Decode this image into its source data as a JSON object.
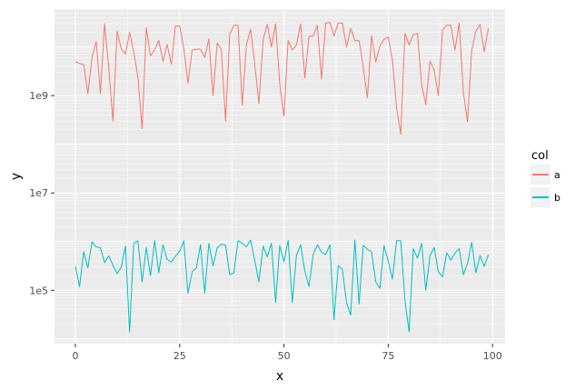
{
  "chart_data": {
    "type": "line",
    "title": "",
    "xlabel": "x",
    "ylabel": "y",
    "x_scale": "linear",
    "y_scale": "log10",
    "xlim": [
      -5,
      103
    ],
    "ylim": [
      8000,
      60000000000
    ],
    "x_ticks": [
      0,
      25,
      50,
      75,
      100
    ],
    "x_tick_labels": [
      "0",
      "25",
      "50",
      "75",
      "100"
    ],
    "y_ticks": [
      100000,
      10000000,
      1000000000
    ],
    "y_tick_labels": [
      "1e5",
      "1e7",
      "1e9"
    ],
    "grid": true,
    "legend": {
      "title": "col",
      "position": "right",
      "entries": [
        "a",
        "b"
      ]
    },
    "series": [
      {
        "name": "a",
        "color": "#f8766d",
        "x": [
          0,
          1,
          2,
          3,
          4,
          5,
          6,
          7,
          8,
          9,
          10,
          11,
          12,
          13,
          14,
          15,
          16,
          17,
          18,
          19,
          20,
          21,
          22,
          23,
          24,
          25,
          26,
          27,
          28,
          29,
          30,
          31,
          32,
          33,
          34,
          35,
          36,
          37,
          38,
          39,
          40,
          41,
          42,
          43,
          44,
          45,
          46,
          47,
          48,
          49,
          50,
          51,
          52,
          53,
          54,
          55,
          56,
          57,
          58,
          59,
          60,
          61,
          62,
          63,
          64,
          65,
          66,
          67,
          68,
          69,
          70,
          71,
          72,
          73,
          74,
          75,
          76,
          77,
          78,
          79,
          80,
          81,
          82,
          83,
          84,
          85,
          86,
          87,
          88,
          89,
          90,
          91,
          92,
          93,
          94,
          95,
          96,
          97,
          98,
          99
        ],
        "y": [
          5000000000,
          4600000000,
          4300000000,
          1100000000,
          6100000000,
          13000000000,
          1100000000,
          30000000000,
          3800000000,
          300000000,
          21000000000,
          9200000000,
          7100000000,
          20000000000,
          7800000000,
          2400000000,
          210000000,
          25000000000,
          6600000000,
          8700000000,
          13600000000,
          5000000000,
          11300000000,
          4400000000,
          27000000000,
          27000000000,
          9300000000,
          1800000000,
          8600000000,
          9000000000,
          9000000000,
          6100000000,
          14500000000,
          1000000000,
          12000000000,
          8800000000,
          300000000,
          18000000000,
          28000000000,
          28000000000,
          640000000,
          11000000000,
          23000000000,
          4500000000,
          680000000,
          14000000000,
          29000000000,
          10000000000,
          30000000000,
          1700000000,
          380000000,
          13500000000,
          8700000000,
          11000000000,
          30000000000,
          2300000000,
          16400000000,
          16900000000,
          28000000000,
          2200000000,
          31000000000,
          32000000000,
          17000000000,
          31000000000,
          31000000000,
          9900000000,
          24000000000,
          13500000000,
          13500000000,
          4000000000,
          900000000,
          17000000000,
          4900000000,
          10400000000,
          14400000000,
          16000000000,
          5400000000,
          550000000,
          160000000,
          19000000000,
          11000000000,
          18000000000,
          19000000000,
          1700000000,
          650000000,
          5100000000,
          3400000000,
          1000000000,
          22000000000,
          28000000000,
          28000000000,
          8600000000,
          31000000000,
          1200000000,
          290000000,
          8500000000,
          21000000000,
          29000000000,
          8000000000,
          24000000000
        ]
      },
      {
        "name": "b",
        "color": "#00bfc4",
        "x": [
          0,
          1,
          2,
          3,
          4,
          5,
          6,
          7,
          8,
          9,
          10,
          11,
          12,
          13,
          14,
          15,
          16,
          17,
          18,
          19,
          20,
          21,
          22,
          23,
          24,
          25,
          26,
          27,
          28,
          29,
          30,
          31,
          32,
          33,
          34,
          35,
          36,
          37,
          38,
          39,
          40,
          41,
          42,
          43,
          44,
          45,
          46,
          47,
          48,
          49,
          50,
          51,
          52,
          53,
          54,
          55,
          56,
          57,
          58,
          59,
          60,
          61,
          62,
          63,
          64,
          65,
          66,
          67,
          68,
          69,
          70,
          71,
          72,
          73,
          74,
          75,
          76,
          77,
          78,
          79,
          80,
          81,
          82,
          83,
          84,
          85,
          86,
          87,
          88,
          89,
          90,
          91,
          92,
          93,
          94,
          95,
          96,
          97,
          98,
          99
        ],
        "y": [
          310000,
          120000,
          620000,
          290000,
          1000000,
          780000,
          750000,
          370000,
          510000,
          330000,
          220000,
          300000,
          820000,
          14000,
          930000,
          1040000,
          150000,
          760000,
          200000,
          1050000,
          230000,
          860000,
          430000,
          380000,
          500000,
          640000,
          1030000,
          88000,
          240000,
          290000,
          870000,
          87000,
          920000,
          320000,
          750000,
          890000,
          850000,
          210000,
          230000,
          1050000,
          920000,
          790000,
          1070000,
          410000,
          150000,
          810000,
          490000,
          930000,
          56000,
          830000,
          390000,
          1060000,
          56000,
          530000,
          860000,
          250000,
          120000,
          540000,
          860000,
          610000,
          540000,
          860000,
          25000,
          320000,
          270000,
          56000,
          31000,
          1080000,
          52000,
          840000,
          700000,
          610000,
          150000,
          110000,
          830000,
          400000,
          170000,
          1050000,
          1040000,
          62000,
          14000,
          720000,
          460000,
          930000,
          100000,
          510000,
          760000,
          240000,
          190000,
          590000,
          420000,
          580000,
          720000,
          210000,
          360000,
          970000,
          230000,
          520000,
          310000,
          540000
        ]
      }
    ]
  }
}
